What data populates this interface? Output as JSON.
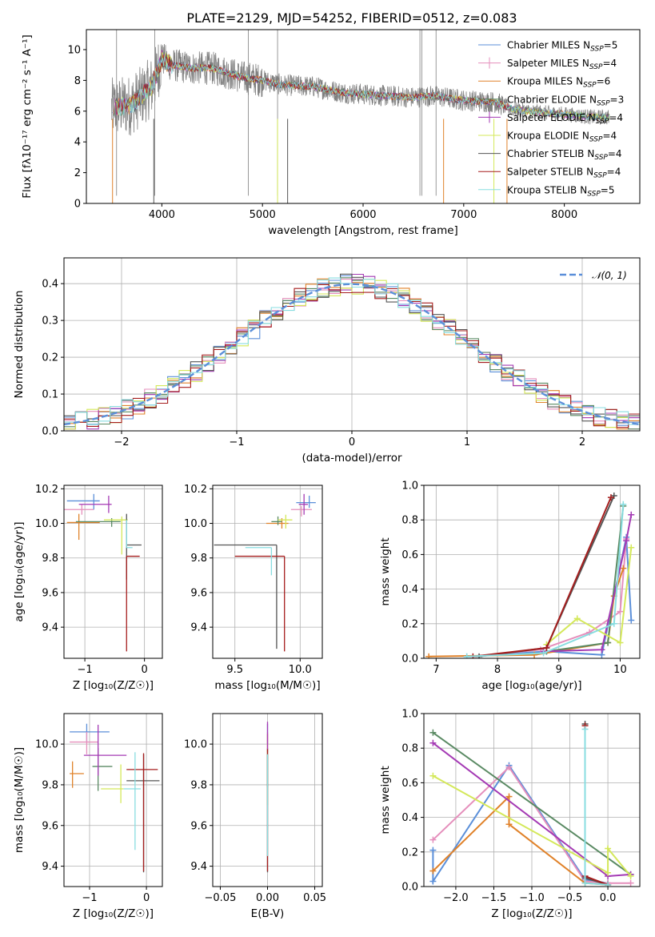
{
  "figure_title": "PLATE=2129, MJD=54252, FIBERID=0512, z=0.083",
  "colors": [
    "#5b8fd9",
    "#e58fbc",
    "#e0822a",
    "#5a8a63",
    "#a43ab4",
    "#d4e85a",
    "#555555",
    "#a51d1d",
    "#88dde0"
  ],
  "legend": [
    {
      "name": "Chabrier MILES",
      "sub": "SSP",
      "n": "=5"
    },
    {
      "name": "Salpeter MILES",
      "sub": "SSP",
      "n": "=4"
    },
    {
      "name": "Kroupa MILES",
      "sub": "SSP",
      "n": "=6"
    },
    {
      "name": "Chabrier ELODIE",
      "sub": "SSP",
      "n": "=3"
    },
    {
      "name": "Salpeter ELODIE",
      "sub": "SSP",
      "n": "=4"
    },
    {
      "name": "Kroupa ELODIE",
      "sub": "SSP",
      "n": "=4"
    },
    {
      "name": "Chabrier STELIB",
      "sub": "SSP",
      "n": "=4"
    },
    {
      "name": "Salpeter STELIB",
      "sub": "SSP",
      "n": "=4"
    },
    {
      "name": "Kroupa STELIB",
      "sub": "SSP",
      "n": "=5"
    }
  ],
  "chart_data": [
    {
      "id": "spectrum",
      "type": "line",
      "xlabel": "wavelength [Angstrom, rest frame]",
      "ylabel": "Flux [fλ10⁻¹⁷ erg cm⁻² s⁻¹ A⁻¹]",
      "xlim": [
        3250,
        8750
      ],
      "ylim": [
        0,
        11.3
      ],
      "xticks": [
        4000,
        5000,
        6000,
        7000,
        8000
      ],
      "yticks": [
        0,
        2,
        4,
        6,
        8,
        10
      ],
      "observed_spectrum": {
        "color": "#808080",
        "anchors": [
          [
            3500,
            6.2
          ],
          [
            3700,
            6.4
          ],
          [
            3900,
            7.6
          ],
          [
            4000,
            9.4
          ],
          [
            4100,
            9.0
          ],
          [
            4300,
            8.8
          ],
          [
            4500,
            8.8
          ],
          [
            4800,
            8.2
          ],
          [
            5000,
            8.0
          ],
          [
            5200,
            7.7
          ],
          [
            5500,
            7.6
          ],
          [
            5800,
            7.2
          ],
          [
            6000,
            7.1
          ],
          [
            6200,
            7.0
          ],
          [
            6500,
            6.9
          ],
          [
            6700,
            7.0
          ],
          [
            7000,
            6.7
          ],
          [
            7300,
            6.6
          ],
          [
            7500,
            6.1
          ],
          [
            7800,
            5.9
          ],
          [
            8000,
            5.8
          ],
          [
            8300,
            5.6
          ],
          [
            8450,
            5.6
          ]
        ],
        "spike_lines_x": [
          3550,
          3930,
          4860,
          5150,
          6565,
          6585,
          6725
        ],
        "drop_lines_x": [
          3510,
          3920,
          5150,
          5250,
          6800,
          7300,
          7430
        ]
      }
    },
    {
      "id": "residuals",
      "type": "histogram",
      "xlabel": "(data-model)/error",
      "ylabel": "Normed distribution",
      "xlim": [
        -2.5,
        2.5
      ],
      "ylim": [
        0,
        0.47
      ],
      "xticks": [
        -2,
        -1,
        0,
        1,
        2
      ],
      "yticks": [
        0.0,
        0.1,
        0.2,
        0.3,
        0.4
      ],
      "bin_edges_start": -2.5,
      "bin_width": 0.1,
      "curve_label": "𝒩(0, 1)",
      "curve_color": "#5b8fd9"
    },
    {
      "id": "age-vs-Z",
      "type": "errorbar",
      "xlabel": "Z [log₁₀(Z/Z☉)]",
      "ylabel": "age  [log₁₀(age/yr)]",
      "xlim": [
        -1.35,
        0.3
      ],
      "ylim": [
        9.22,
        10.22
      ],
      "xticks": [
        -1,
        0
      ],
      "yticks": [
        9.4,
        9.6,
        9.8,
        10.0,
        10.2
      ],
      "points": [
        {
          "x": -0.85,
          "xerr": [
            0.45,
            0.1
          ],
          "y": 10.13,
          "yerr": [
            0.05,
            0.04
          ]
        },
        {
          "x": -1.05,
          "xerr": [
            0.3,
            0.2
          ],
          "y": 10.08,
          "yerr": [
            0.03,
            0.03
          ]
        },
        {
          "x": -1.1,
          "xerr": [
            0.2,
            0.35
          ],
          "y": 10.005,
          "yerr": [
            0.1,
            0.05
          ]
        },
        {
          "x": -0.55,
          "xerr": [
            0.6,
            0.15
          ],
          "y": 10.01,
          "yerr": [
            0.03,
            0.02
          ]
        },
        {
          "x": -0.6,
          "xerr": [
            0.5,
            0.05
          ],
          "y": 10.11,
          "yerr": [
            0.05,
            0.05
          ]
        },
        {
          "x": -0.38,
          "xerr": [
            0.3,
            0.1
          ],
          "y": 10.02,
          "yerr": [
            0.2,
            0.02
          ]
        },
        {
          "x": -0.3,
          "xerr": [
            0.0,
            0.25
          ],
          "y": 9.875,
          "yerr": [
            0.2,
            0.18
          ]
        },
        {
          "x": -0.3,
          "xerr": [
            0.0,
            0.22
          ],
          "y": 9.81,
          "yerr": [
            0.55,
            0.0
          ]
        },
        {
          "x": -0.3,
          "xerr": [
            0.0,
            0.1
          ],
          "y": 9.86,
          "yerr": [
            0.0,
            0.16
          ]
        }
      ]
    },
    {
      "id": "age-vs-mass",
      "type": "errorbar",
      "xlabel": "mass [log₁₀(M/M☉)]",
      "ylabel": "",
      "xlim": [
        9.33,
        10.17
      ],
      "ylim": [
        9.22,
        10.22
      ],
      "xticks": [
        9.5,
        10.0
      ],
      "yticks": [
        9.4,
        9.6,
        9.8,
        10.0,
        10.2
      ],
      "points": [
        {
          "x": 10.07,
          "xerr": [
            0.1,
            0.05
          ],
          "y": 10.12,
          "yerr": [
            0.03,
            0.04
          ]
        },
        {
          "x": 10.01,
          "xerr": [
            0.08,
            0.08
          ],
          "y": 10.08,
          "yerr": [
            0.04,
            0.02
          ]
        },
        {
          "x": 9.86,
          "xerr": [
            0.12,
            0.05
          ],
          "y": 10.0,
          "yerr": [
            0.03,
            0.03
          ]
        },
        {
          "x": 9.83,
          "xerr": [
            0.05,
            0.03
          ],
          "y": 10.01,
          "yerr": [
            0.02,
            0.03
          ]
        },
        {
          "x": 10.03,
          "xerr": [
            0.04,
            0.03
          ],
          "y": 10.11,
          "yerr": [
            0.06,
            0.06
          ]
        },
        {
          "x": 9.89,
          "xerr": [
            0.06,
            0.05
          ],
          "y": 10.02,
          "yerr": [
            0.05,
            0.03
          ]
        },
        {
          "x": 9.82,
          "xerr": [
            0.48,
            0.0
          ],
          "y": 9.875,
          "yerr": [
            0.6,
            0.0
          ]
        },
        {
          "x": 9.88,
          "xerr": [
            0.38,
            0.0
          ],
          "y": 9.81,
          "yerr": [
            0.55,
            0.0
          ]
        },
        {
          "x": 9.78,
          "xerr": [
            0.2,
            0.0
          ],
          "y": 9.86,
          "yerr": [
            0.16,
            0.0
          ]
        }
      ]
    },
    {
      "id": "massweight-vs-age",
      "type": "line",
      "xlabel": "age  [log₁₀(age/yr)]",
      "ylabel": "mass weight",
      "xlim": [
        6.8,
        10.32
      ],
      "ylim": [
        0,
        1.0
      ],
      "xticks": [
        7,
        8,
        9,
        10
      ],
      "yticks": [
        0.0,
        0.2,
        0.4,
        0.6,
        0.8,
        1.0
      ],
      "series": [
        {
          "x": [
            7.5,
            8.8,
            9.7,
            10.1,
            10.18
          ],
          "y": [
            0.01,
            0.04,
            0.02,
            0.7,
            0.22
          ]
        },
        {
          "x": [
            7.6,
            8.7,
            9.5,
            10.0,
            10.1
          ],
          "y": [
            0.01,
            0.05,
            0.15,
            0.27,
            0.69
          ]
        },
        {
          "x": [
            6.88,
            8.6,
            9.8,
            9.9,
            10.05
          ],
          "y": [
            0.01,
            0.02,
            0.09,
            0.36,
            0.52
          ]
        },
        {
          "x": [
            8.8,
            9.8,
            10.05
          ],
          "y": [
            0.04,
            0.09,
            0.88
          ]
        },
        {
          "x": [
            8.75,
            9.7,
            10.1,
            10.18
          ],
          "y": [
            0.04,
            0.05,
            0.68,
            0.83
          ]
        },
        {
          "x": [
            8.8,
            9.3,
            10.0,
            10.18
          ],
          "y": [
            0.08,
            0.23,
            0.09,
            0.64
          ]
        },
        {
          "x": [
            7.7,
            8.8,
            9.9
          ],
          "y": [
            0.01,
            0.06,
            0.94
          ]
        },
        {
          "x": [
            7.6,
            8.8,
            9.85
          ],
          "y": [
            0.01,
            0.06,
            0.93
          ]
        },
        {
          "x": [
            7.5,
            8.75,
            9.9,
            10.05
          ],
          "y": [
            0.01,
            0.03,
            0.2,
            0.89
          ]
        }
      ]
    },
    {
      "id": "mass-vs-Z",
      "type": "errorbar",
      "xlabel": "Z [log₁₀(Z/Z☉)]",
      "ylabel": "mass [log₁₀(M/M☉)]",
      "xlim": [
        -1.45,
        0.28
      ],
      "ylim": [
        9.3,
        10.15
      ],
      "xticks": [
        -1,
        0
      ],
      "yticks": [
        9.4,
        9.6,
        9.8,
        10.0
      ],
      "points": [
        {
          "x": -1.05,
          "xerr": [
            0.3,
            0.4
          ],
          "y": 10.06,
          "yerr": [
            0.05,
            0.04
          ]
        },
        {
          "x": -1.05,
          "xerr": [
            0.3,
            0.2
          ],
          "y": 10.01,
          "yerr": [
            0.06,
            0.05
          ]
        },
        {
          "x": -1.3,
          "xerr": [
            0.05,
            0.2
          ],
          "y": 9.855,
          "yerr": [
            0.07,
            0.06
          ]
        },
        {
          "x": -0.85,
          "xerr": [
            0.1,
            0.25
          ],
          "y": 9.89,
          "yerr": [
            0.12,
            0.09
          ]
        },
        {
          "x": -0.85,
          "xerr": [
            0.25,
            0.5
          ],
          "y": 9.945,
          "yerr": [
            0.1,
            0.15
          ]
        },
        {
          "x": -0.45,
          "xerr": [
            0.35,
            0.05
          ],
          "y": 9.78,
          "yerr": [
            0.07,
            0.12
          ]
        },
        {
          "x": -0.05,
          "xerr": [
            0.3,
            0.28
          ],
          "y": 9.82,
          "yerr": [
            0.45,
            0.13
          ]
        },
        {
          "x": -0.05,
          "xerr": [
            0.3,
            0.25
          ],
          "y": 9.875,
          "yerr": [
            0.5,
            0.08
          ]
        },
        {
          "x": -0.2,
          "xerr": [
            0.2,
            0.1
          ],
          "y": 9.78,
          "yerr": [
            0.3,
            0.18
          ]
        }
      ]
    },
    {
      "id": "mass-vs-ebv",
      "type": "errorbar",
      "xlabel": "E(B-V)",
      "ylabel": "",
      "xlim": [
        -0.058,
        0.058
      ],
      "ylim": [
        9.3,
        10.15
      ],
      "xticks": [
        -0.05,
        0.0,
        0.05
      ],
      "yticks": [
        9.4,
        9.6,
        9.8,
        10.0
      ],
      "points": [
        {
          "x": 0.0,
          "xerr": [
            0,
            0
          ],
          "y": 10.05,
          "yerr": [
            0.05,
            0.05
          ]
        },
        {
          "x": 0.0,
          "xerr": [
            0,
            0
          ],
          "y": 10.01,
          "yerr": [
            0.05,
            0.05
          ]
        },
        {
          "x": 0.0,
          "xerr": [
            0,
            0
          ],
          "y": 10.0,
          "yerr": [
            0.05,
            0.05
          ]
        },
        {
          "x": 0.0,
          "xerr": [
            0,
            0
          ],
          "y": 9.89,
          "yerr": [
            0.1,
            0.09
          ]
        },
        {
          "x": 0.0,
          "xerr": [
            0,
            0
          ],
          "y": 10.04,
          "yerr": [
            0.07,
            0.07
          ]
        },
        {
          "x": 0.0,
          "xerr": [
            0,
            0
          ],
          "y": 9.8,
          "yerr": [
            0.1,
            0.15
          ]
        },
        {
          "x": 0.0,
          "xerr": [
            0,
            0
          ],
          "y": 9.82,
          "yerr": [
            0.45,
            0.13
          ]
        },
        {
          "x": 0.0,
          "xerr": [
            0,
            0
          ],
          "y": 9.875,
          "yerr": [
            0.5,
            0.1
          ]
        },
        {
          "x": 0.0,
          "xerr": [
            0,
            0
          ],
          "y": 9.75,
          "yerr": [
            0.3,
            0.2
          ]
        }
      ]
    },
    {
      "id": "massweight-vs-Z",
      "type": "line",
      "xlabel": "Z [log₁₀(Z/Z☉)]",
      "ylabel": "mass weight",
      "xlim": [
        -2.42,
        0.42
      ],
      "ylim": [
        0,
        1.0
      ],
      "xticks": [
        -2.0,
        -1.5,
        -1.0,
        -0.5,
        0.0
      ],
      "yticks": [
        0.0,
        0.2,
        0.4,
        0.6,
        0.8,
        1.0
      ],
      "series": [
        {
          "x": [
            -2.3,
            -2.3,
            -1.3,
            -0.3,
            0.0
          ],
          "y": [
            0.21,
            0.03,
            0.7,
            0.04,
            0.02
          ]
        },
        {
          "x": [
            -2.3,
            -1.3,
            -0.3,
            0.0,
            0.3
          ],
          "y": [
            0.27,
            0.69,
            0.03,
            0.02,
            0.02
          ]
        },
        {
          "x": [
            -2.3,
            -1.3,
            -1.3,
            -0.3,
            0.0
          ],
          "y": [
            0.09,
            0.52,
            0.36,
            0.02,
            0.01
          ]
        },
        {
          "x": [
            -2.3,
            0.3
          ],
          "y": [
            0.89,
            0.07
          ]
        },
        {
          "x": [
            -2.3,
            0.0,
            0.3
          ],
          "y": [
            0.83,
            0.06,
            0.07
          ]
        },
        {
          "x": [
            -2.3,
            0.0,
            0.0,
            0.3
          ],
          "y": [
            0.64,
            0.08,
            0.22,
            0.06
          ]
        },
        {
          "x": [
            -0.3,
            -0.3,
            0.0
          ],
          "y": [
            0.94,
            0.05,
            0.01
          ]
        },
        {
          "x": [
            -0.3,
            -0.3,
            0.0
          ],
          "y": [
            0.93,
            0.06,
            0.01
          ]
        },
        {
          "x": [
            -0.3,
            -0.3,
            0.0
          ],
          "y": [
            0.91,
            0.02,
            0.01
          ]
        }
      ]
    }
  ]
}
